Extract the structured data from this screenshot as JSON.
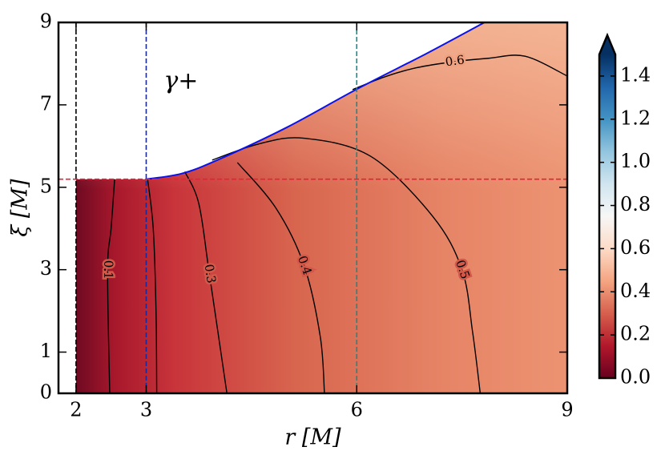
{
  "chart_data": {
    "type": "contour",
    "xlabel": "r [M]",
    "ylabel": "ξ [M]",
    "xlim": [
      1.75,
      9
    ],
    "xticks": [
      2,
      3,
      6,
      9
    ],
    "ylim": [
      0,
      9
    ],
    "yticks": [
      0,
      1,
      3,
      5,
      7,
      9
    ],
    "annotation": {
      "text": "γ+",
      "x": 3.25,
      "y": 7.55
    },
    "vlines": [
      {
        "x": 2,
        "color": "#000000"
      },
      {
        "x": 3,
        "color": "#1a2a9a"
      },
      {
        "x": 6,
        "color": "#1a8a8a"
      }
    ],
    "hlines": [
      {
        "y": 5.196,
        "color": "#e8203a"
      }
    ],
    "boundary": {
      "color": "#0a14e8",
      "x": [
        3,
        3.5,
        4,
        5,
        6,
        7,
        7.82
      ],
      "y": [
        5.196,
        5.33,
        5.65,
        6.45,
        7.38,
        8.25,
        9
      ]
    },
    "contours": [
      {
        "level": 0.1,
        "label": "0.1",
        "x": [
          2.55,
          2.5,
          2.45,
          2.48
        ],
        "y": [
          5.196,
          4,
          3.0,
          0
        ]
      },
      {
        "level": 0.2,
        "x": [
          3.02,
          3.1,
          3.14,
          3.15
        ],
        "y": [
          5.196,
          4,
          2,
          0
        ]
      },
      {
        "level": 0.3,
        "label": "0.3",
        "x": [
          3.55,
          3.75,
          3.9,
          4.15
        ],
        "y": [
          5.38,
          4.6,
          2.9,
          0
        ]
      },
      {
        "level": 0.4,
        "label": "0.4",
        "x": [
          4.3,
          4.85,
          5.25,
          5.48,
          5.54
        ],
        "y": [
          5.6,
          4.49,
          3.1,
          1.38,
          0
        ]
      },
      {
        "level": 0.5,
        "label": "0.5",
        "x": [
          3.94,
          4.6,
          5.25,
          6.2,
          7.08,
          7.5,
          7.65,
          7.76
        ],
        "y": [
          5.66,
          6.05,
          6.19,
          5.75,
          4.3,
          3.0,
          1.5,
          0
        ]
      },
      {
        "level": 0.6,
        "label": "0.6",
        "x": [
          5.94,
          6.4,
          6.85,
          7.4,
          7.88,
          8.4,
          9
        ],
        "y": [
          7.37,
          7.68,
          7.9,
          8.05,
          8.13,
          8.18,
          7.7
        ]
      }
    ],
    "colorbar": {
      "clim": [
        0,
        1.5
      ],
      "extend": "max",
      "ticks": [
        {
          "value": 0,
          "label": "0.0"
        },
        0.2,
        0.4,
        0.6,
        0.8,
        {
          "value": 1,
          "label": "1.0"
        },
        1.2,
        1.4
      ],
      "colors": [
        "#67001f",
        "#b2182b",
        "#d6604d",
        "#f4a582",
        "#fddbc7",
        "#f7f7f7",
        "#d1e5f0",
        "#92c5de",
        "#4393c3",
        "#2166ac",
        "#053061"
      ]
    }
  }
}
